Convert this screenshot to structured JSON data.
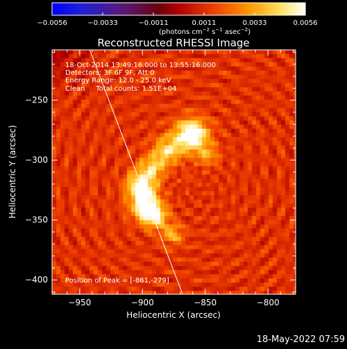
{
  "colorbar": {
    "ticks": [
      "−0.0056",
      "−0.0033",
      "−0.0011",
      "0.0011",
      "0.0033",
      "0.0056"
    ],
    "min": -0.0056,
    "max": 0.0056,
    "unit_prefix": "(photons cm",
    "unit_exp1": "−2",
    "unit_mid": " s",
    "unit_exp2": "−1",
    "unit_mid2": " asec",
    "unit_exp3": "−2",
    "unit_suffix": ")"
  },
  "chart_data": {
    "type": "heatmap",
    "title": "Reconstructed RHESSI Image",
    "xlabel": "Heliocentric X (arcsec)",
    "ylabel": "Heliocentric Y (arcsec)",
    "xlim": [
      -972,
      -778
    ],
    "ylim": [
      -412,
      -208
    ],
    "x_ticks": [
      -950,
      -900,
      -850,
      -800
    ],
    "y_ticks": [
      -250,
      -300,
      -350,
      -400
    ],
    "x_tick_labels": [
      "−950",
      "−900",
      "−850",
      "−800"
    ],
    "y_tick_labels": [
      "−250",
      "−300",
      "−350",
      "−400"
    ],
    "annotations": [
      "18-Oct-2014 13:49:16.000 to 13:55:16.000",
      "Detectors: 3F 6F 9F, Att 0",
      "Energy Range: 12.0 - 25.0 keV",
      "Clean     Total counts: 1.51E+04"
    ],
    "peak_label": "Position of Peak = [-861,-279]",
    "peak": [
      -861,
      -279
    ],
    "limb_line": [
      [
        -942,
        -208
      ],
      [
        -868,
        -412
      ]
    ],
    "sources": [
      {
        "x": -861,
        "y": -279,
        "sigma": 9,
        "amp": 0.0056
      },
      {
        "x": -880,
        "y": -292,
        "sigma": 8,
        "amp": 0.0032
      },
      {
        "x": -892,
        "y": -306,
        "sigma": 7,
        "amp": 0.0028
      },
      {
        "x": -901,
        "y": -321,
        "sigma": 8,
        "amp": 0.0046
      },
      {
        "x": -898,
        "y": -338,
        "sigma": 8,
        "amp": 0.0044
      },
      {
        "x": -890,
        "y": -347,
        "sigma": 7,
        "amp": 0.0036
      },
      {
        "x": -876,
        "y": -362,
        "sigma": 6,
        "amp": 0.0024
      },
      {
        "x": -848,
        "y": -296,
        "sigma": 6,
        "amp": 0.002
      }
    ]
  },
  "footer": {
    "timestamp": "18-May-2022 07:59"
  }
}
